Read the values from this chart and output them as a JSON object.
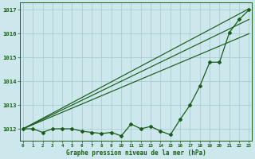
{
  "title": "Graphe pression niveau de la mer (hPa)",
  "bg_color": "#cce8ec",
  "line_color": "#1a5c1a",
  "xlim": [
    -0.3,
    23.3
  ],
  "ylim": [
    1011.5,
    1017.3
  ],
  "yticks": [
    1012,
    1013,
    1014,
    1015,
    1016,
    1017
  ],
  "xticks": [
    0,
    1,
    2,
    3,
    4,
    5,
    6,
    7,
    8,
    9,
    10,
    11,
    12,
    13,
    14,
    15,
    16,
    17,
    18,
    19,
    20,
    21,
    22,
    23
  ],
  "jagged": [
    1012.0,
    1012.0,
    1011.85,
    1012.0,
    1012.0,
    1012.0,
    1011.9,
    1011.85,
    1011.8,
    1011.85,
    1011.7,
    1012.2,
    1012.0,
    1012.1,
    1011.9,
    1011.75,
    1012.4,
    1013.0,
    1013.8,
    1014.8,
    1014.8,
    1016.05,
    1016.6,
    1017.0
  ],
  "smooth_lines": [
    [
      [
        0,
        23
      ],
      [
        1012.0,
        1016.0
      ]
    ],
    [
      [
        0,
        23
      ],
      [
        1012.0,
        1016.6
      ]
    ],
    [
      [
        0,
        23
      ],
      [
        1012.0,
        1017.05
      ]
    ]
  ]
}
